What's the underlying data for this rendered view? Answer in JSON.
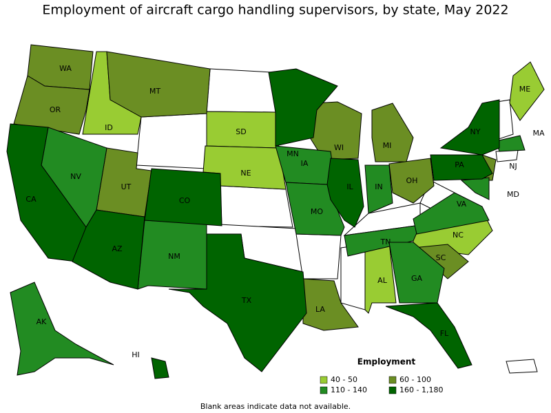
{
  "title": "Employment of aircraft cargo handling supervisors, by state, May 2022",
  "legend": {
    "title": "Employment",
    "items": [
      {
        "label": "40 - 50",
        "color": "#99cc33",
        "states": [
          "ID",
          "SD",
          "NE",
          "ME",
          "NC",
          "AL"
        ]
      },
      {
        "label": "60 - 100",
        "color": "#6b8e23",
        "states": [
          "WA",
          "OR",
          "MT",
          "UT",
          "WI",
          "MI",
          "OH",
          "SC",
          "LA",
          "NJ"
        ]
      },
      {
        "label": "110 - 140",
        "color": "#228b22",
        "states": [
          "NV",
          "NM",
          "IA",
          "MO",
          "IN",
          "TN",
          "GA",
          "VA",
          "AK",
          "MA",
          "MD"
        ]
      },
      {
        "label": "160 - 1,180",
        "color": "#006400",
        "states": [
          "CA",
          "AZ",
          "CO",
          "TX",
          "MN",
          "IL",
          "NY",
          "PA",
          "FL",
          "HI"
        ]
      }
    ]
  },
  "footnote": "Blank areas indicate data not available."
}
